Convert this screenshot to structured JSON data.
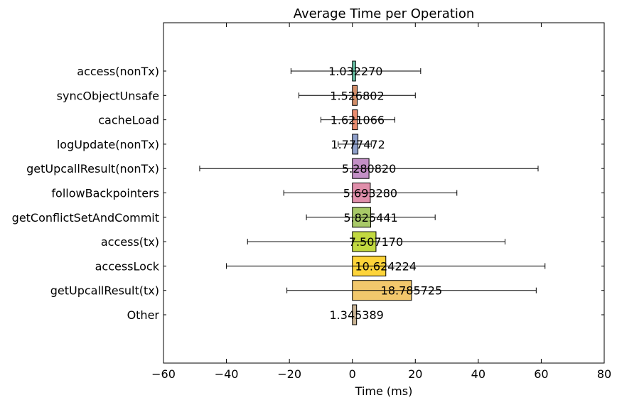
{
  "chart_data": {
    "type": "bar",
    "orientation": "horizontal",
    "title": "Average Time per Operation",
    "xlabel": "Time (ms)",
    "ylabel": "",
    "xlim": [
      -60,
      80
    ],
    "xticks": [
      -60,
      -40,
      -20,
      0,
      20,
      40,
      60,
      80
    ],
    "xtick_labels": [
      "−60",
      "−40",
      "−20",
      "0",
      "20",
      "40",
      "60",
      "80"
    ],
    "grid": false,
    "categories": [
      "access(nonTx)",
      "syncObjectUnsafe",
      "cacheLoad",
      "logUpdate(nonTx)",
      "getUpcallResult(nonTx)",
      "followBackpointers",
      "getConflictSetAndCommit",
      "access(tx)",
      "accessLock",
      "getUpcallResult(tx)",
      "Other"
    ],
    "values": [
      1.03227,
      1.526802,
      1.621066,
      1.777472,
      5.28082,
      5.69328,
      5.825441,
      7.50717,
      10.624224,
      18.785725,
      1.345389
    ],
    "value_labels": [
      "1.032270",
      "1.526802",
      "1.621066",
      "1.777472",
      "5.280820",
      "5.693280",
      "5.825441",
      "7.507170",
      "10.624224",
      "18.785725",
      "1.345389"
    ],
    "error_bars": [
      {
        "low": -19.5,
        "high": 21.7
      },
      {
        "low": -17.0,
        "high": 20.0
      },
      {
        "low": -10.0,
        "high": 13.5
      },
      {
        "low": -4.5,
        "high": 6.0
      },
      {
        "low": -48.5,
        "high": 59.0
      },
      {
        "low": -21.8,
        "high": 33.2
      },
      {
        "low": -14.6,
        "high": 26.3
      },
      {
        "low": -33.3,
        "high": 48.5
      },
      {
        "low": -40.0,
        "high": 61.2
      },
      {
        "low": -20.8,
        "high": 58.4
      },
      {
        "low": null,
        "high": null
      }
    ],
    "colors": [
      "#66c2a5",
      "#d38f6a",
      "#e88b6e",
      "#8fa0cb",
      "#c38fc6",
      "#e08fab",
      "#a8c968",
      "#c2d940",
      "#fdd43a",
      "#f2c86c",
      "#c9b393"
    ]
  }
}
